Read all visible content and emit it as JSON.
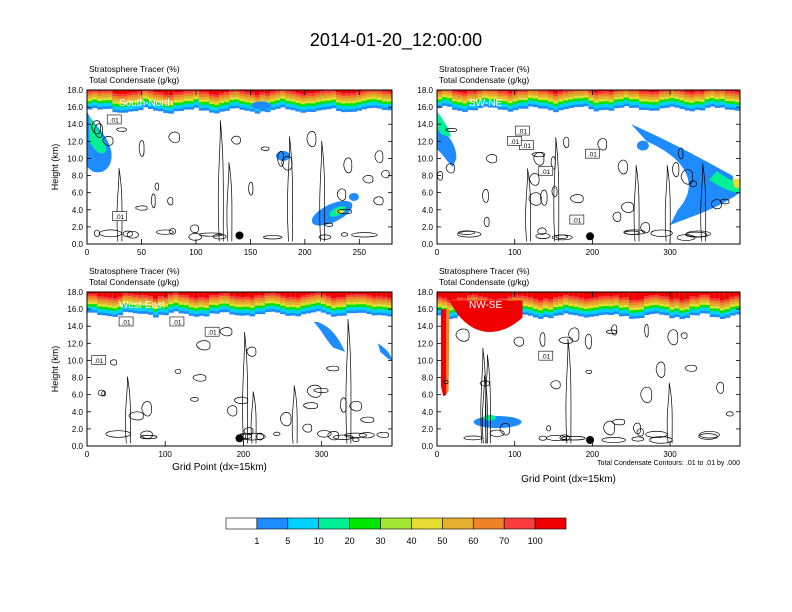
{
  "title": "2014-01-20_12:00:00",
  "colors": {
    "levels": [
      "#ffffff",
      "#1e8cff",
      "#00d2ff",
      "#00f096",
      "#00e600",
      "#a0e632",
      "#e6dc32",
      "#e6af2d",
      "#f08228",
      "#fa3c3c",
      "#f00000"
    ]
  },
  "chart_data": [
    {
      "type": "heatmap",
      "panel_label": "South-North",
      "subtitle_lines": [
        "Stratosphere Tracer   (%)",
        "Total Condensate   (g/kg)"
      ],
      "ylabel": "Height (km)",
      "xlabel": "",
      "xlim": [
        0,
        280
      ],
      "xticks": [
        0,
        50,
        100,
        150,
        200,
        250
      ],
      "ylim": [
        0,
        18
      ],
      "yticks": [
        "0.0",
        "2.0",
        "4.0",
        "6.0",
        "8.0",
        "10.0",
        "12.0",
        "14.0",
        "16.0",
        "18.0"
      ],
      "contour_labels": [
        {
          "text": ".01",
          "x": 25,
          "y": 14.5
        },
        {
          "text": ".01",
          "x": 30,
          "y": 3.2
        }
      ],
      "marker": {
        "x": 140,
        "y": 1.0
      },
      "tropopause_km": 16.2
    },
    {
      "type": "heatmap",
      "panel_label": "SW-NE",
      "subtitle_lines": [
        "Stratosphere Tracer   (%)",
        "Total Condensate   (g/kg)"
      ],
      "ylabel": "",
      "xlabel": "",
      "xlim": [
        0,
        390
      ],
      "xticks": [
        0,
        100,
        200,
        300
      ],
      "ylim": [
        0,
        18
      ],
      "yticks": [
        "0.0",
        "2.0",
        "4.0",
        "6.0",
        "8.0",
        "10.0",
        "12.0",
        "14.0",
        "16.0",
        "18.0"
      ],
      "contour_labels": [
        {
          "text": ".01",
          "x": 110,
          "y": 13.2
        },
        {
          "text": ".01",
          "x": 115,
          "y": 11.5
        },
        {
          "text": ".01",
          "x": 100,
          "y": 12.0
        },
        {
          "text": ".01",
          "x": 200,
          "y": 10.5
        },
        {
          "text": ".01",
          "x": 180,
          "y": 2.8
        },
        {
          "text": ".01",
          "x": 140,
          "y": 8.5
        }
      ],
      "marker": {
        "x": 197,
        "y": 0.9
      },
      "tropopause_km": 16.4
    },
    {
      "type": "heatmap",
      "panel_label": "West-East",
      "subtitle_lines": [
        "Stratosphere Tracer   (%)",
        "Total Condensate   (g/kg)"
      ],
      "ylabel": "Height (km)",
      "xlabel": "Grid Point (dx=15km)",
      "xlim": [
        0,
        390
      ],
      "xticks": [
        0,
        100,
        200,
        300
      ],
      "ylim": [
        0,
        18
      ],
      "yticks": [
        "0.0",
        "2.0",
        "4.0",
        "6.0",
        "8.0",
        "10.0",
        "12.0",
        "14.0",
        "16.0",
        "18.0"
      ],
      "contour_labels": [
        {
          "text": ".01",
          "x": 50,
          "y": 14.5
        },
        {
          "text": ".01",
          "x": 115,
          "y": 14.5
        },
        {
          "text": ".01",
          "x": 160,
          "y": 13.3
        },
        {
          "text": ".01",
          "x": 15,
          "y": 10.0
        }
      ],
      "marker": {
        "x": 195,
        "y": 0.9
      },
      "tropopause_km": 16.0
    },
    {
      "type": "heatmap",
      "panel_label": "NW-SE",
      "subtitle_lines": [
        "Stratosphere Tracer   (%)",
        "Total Condensate   (g/kg)"
      ],
      "ylabel": "",
      "xlabel": "Grid Point (dx=15km)",
      "xlim": [
        0,
        390
      ],
      "xticks": [
        0,
        100,
        200,
        300
      ],
      "ylim": [
        0,
        18
      ],
      "yticks": [
        "0.0",
        "2.0",
        "4.0",
        "6.0",
        "8.0",
        "10.0",
        "12.0",
        "14.0",
        "16.0",
        "18.0"
      ],
      "contour_labels": [
        {
          "text": ".01",
          "x": 140,
          "y": 10.5
        }
      ],
      "marker": {
        "x": 197,
        "y": 0.7
      },
      "tropopause_km": 15.8,
      "footnote": "Total Condensate Contours: .01 to .01 by .000"
    }
  ],
  "colorbar": {
    "labels": [
      "1",
      "5",
      "10",
      "20",
      "30",
      "40",
      "50",
      "60",
      "70",
      "100"
    ]
  }
}
